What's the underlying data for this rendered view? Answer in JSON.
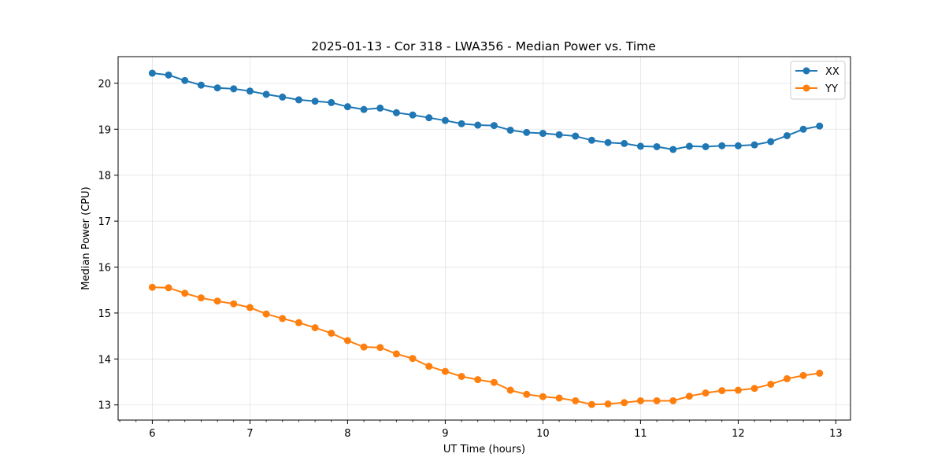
{
  "chart_data": {
    "type": "line",
    "title": "2025-01-13 - Cor 318 - LWA356 - Median Power vs. Time",
    "xlabel": "UT Time (hours)",
    "ylabel": "Median Power (CPU)",
    "xlim": [
      5.65,
      13.15
    ],
    "ylim": [
      12.67,
      20.58
    ],
    "xticks": [
      6,
      7,
      8,
      9,
      10,
      11,
      12,
      13
    ],
    "yticks": [
      13,
      14,
      15,
      16,
      17,
      18,
      19,
      20
    ],
    "grid": true,
    "legend_position": "top-right",
    "x": [
      6.0,
      6.1667,
      6.3333,
      6.5,
      6.6667,
      6.8333,
      7.0,
      7.1667,
      7.3333,
      7.5,
      7.6667,
      7.8333,
      8.0,
      8.1667,
      8.3333,
      8.5,
      8.6667,
      8.8333,
      9.0,
      9.1667,
      9.3333,
      9.5,
      9.6667,
      9.8333,
      10.0,
      10.1667,
      10.3333,
      10.5,
      10.6667,
      10.8333,
      11.0,
      11.1667,
      11.3333,
      11.5,
      11.6667,
      11.8333,
      12.0,
      12.1667,
      12.3333,
      12.5,
      12.6667,
      12.8333
    ],
    "series": [
      {
        "name": "XX",
        "color": "#1f77b4",
        "values": [
          20.22,
          20.18,
          20.06,
          19.96,
          19.9,
          19.88,
          19.83,
          19.76,
          19.7,
          19.64,
          19.61,
          19.58,
          19.49,
          19.43,
          19.46,
          19.36,
          19.31,
          19.25,
          19.19,
          19.12,
          19.09,
          19.08,
          18.98,
          18.93,
          18.91,
          18.88,
          18.85,
          18.76,
          18.71,
          18.69,
          18.63,
          18.62,
          18.56,
          18.63,
          18.62,
          18.64,
          18.64,
          18.66,
          18.73,
          18.86,
          19.0,
          19.07
        ]
      },
      {
        "name": "YY",
        "color": "#ff7f0e",
        "values": [
          15.56,
          15.55,
          15.43,
          15.33,
          15.26,
          15.2,
          15.12,
          14.98,
          14.88,
          14.79,
          14.68,
          14.56,
          14.4,
          14.26,
          14.25,
          14.11,
          14.01,
          13.84,
          13.73,
          13.62,
          13.55,
          13.49,
          13.32,
          13.23,
          13.18,
          13.15,
          13.09,
          13.01,
          13.02,
          13.05,
          13.09,
          13.09,
          13.09,
          13.19,
          13.26,
          13.31,
          13.32,
          13.36,
          13.45,
          13.57,
          13.64,
          13.69
        ]
      }
    ]
  }
}
